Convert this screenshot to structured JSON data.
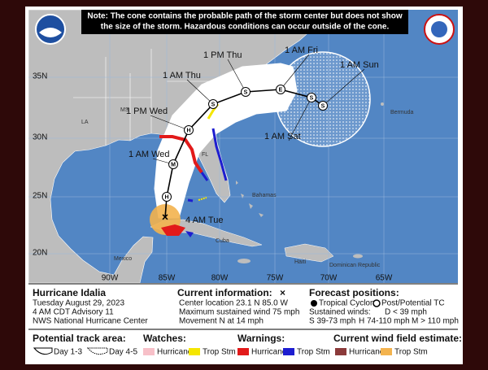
{
  "note": [
    "Note: The cone contains the probable path of the storm center but does not show",
    "the size of the storm. Hazardous conditions can occur outside of the cone."
  ],
  "map": {
    "lat_labels": [
      "35N",
      "30N",
      "25N",
      "20N"
    ],
    "lon_labels": [
      "90W",
      "85W",
      "80W",
      "75W",
      "70W",
      "65W"
    ],
    "places": [
      "MS",
      "LA",
      "FL",
      "Bermuda",
      "Bahamas",
      "Mexico",
      "Cuba",
      "Haiti",
      "Dominican Republic"
    ],
    "current_marker": "×",
    "points": [
      {
        "letter": "H"
      },
      {
        "letter": "M",
        "time": "1 AM Wed"
      },
      {
        "letter": "H",
        "time": "1 PM Wed"
      },
      {
        "letter": "S",
        "time": "1 AM Thu"
      },
      {
        "letter": "S",
        "time": "1 PM Thu"
      },
      {
        "letter": "E",
        "time": "1 AM Fri"
      },
      {
        "letter": "S",
        "time": "1 AM Sat"
      },
      {
        "letter": "S",
        "time": "1 AM Sun"
      }
    ],
    "current_time": "4 AM Tue"
  },
  "info": {
    "storm": "Hurricane Idalia",
    "date": "Tuesday August 29, 2023",
    "advisory": "4 AM CDT Advisory 11",
    "agency": "NWS National Hurricane Center"
  },
  "current": {
    "heading": "Current information:",
    "marker": "×",
    "location": "Center location 23.1 N 85.0 W",
    "wind": "Maximum sustained wind 75 mph",
    "movement": "Movement N at 14 mph"
  },
  "forecast": {
    "heading": "Forecast positions:",
    "tc": "Tropical Cyclone",
    "ptc": "Post/Potential TC",
    "winds": "Sustained winds:",
    "d": "D < 39 mph",
    "s": "S 39-73 mph",
    "h": "H 74-110 mph",
    "m": "M > 110 mph"
  },
  "legend": {
    "track_area": "Potential track area:",
    "day13": "Day 1-3",
    "day45": "Day 4-5",
    "watches": "Watches:",
    "watch_hurricane": "Hurricane",
    "watch_ts": "Trop Stm",
    "warnings": "Warnings:",
    "warning_hurricane": "Hurricane",
    "warning_ts": "Trop Stm",
    "wind_field": "Current wind field estimate:",
    "wind_hurricane": "Hurricane",
    "wind_ts": "Trop Stm"
  }
}
